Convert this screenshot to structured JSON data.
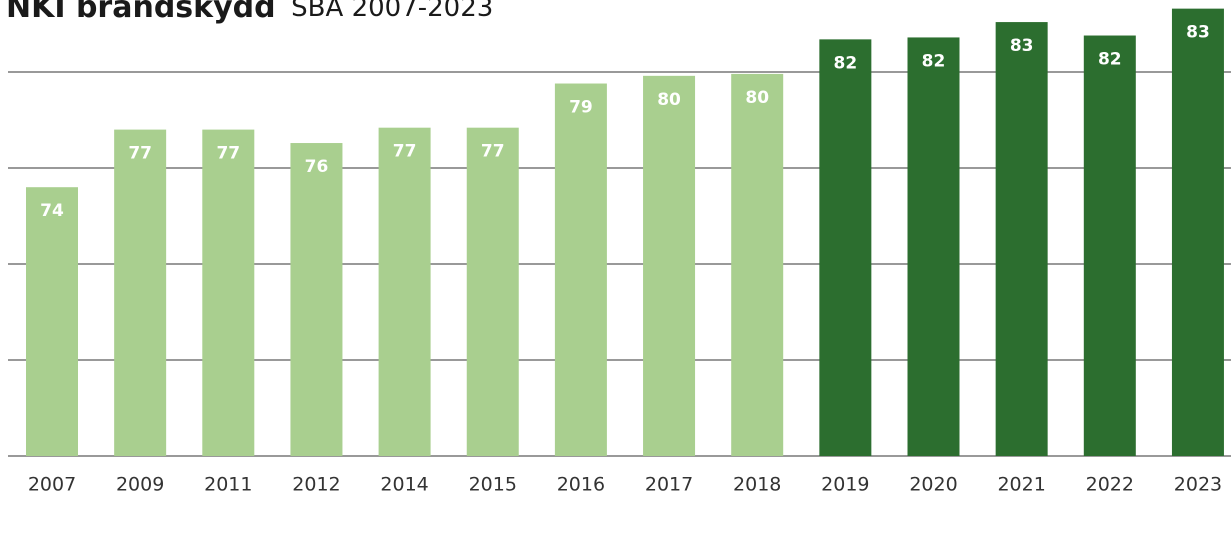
{
  "chart_data": {
    "type": "bar",
    "title": "NKI brandskydd",
    "subtitle": "SBA 2007-2023",
    "categories": [
      "2007",
      "2009",
      "2011",
      "2012",
      "2014",
      "2015",
      "2016",
      "2017",
      "2018",
      "2019",
      "2020",
      "2021",
      "2022",
      "2023"
    ],
    "values": [
      74.0,
      77.0,
      77.0,
      76.3,
      77.1,
      77.1,
      79.4,
      79.8,
      79.9,
      81.7,
      81.8,
      82.6,
      81.9,
      83.3
    ],
    "value_labels": [
      "74",
      "77",
      "77",
      "76",
      "77",
      "77",
      "79",
      "80",
      "80",
      "82",
      "82",
      "83",
      "82",
      "83"
    ],
    "colors": [
      "#a9cf8f",
      "#a9cf8f",
      "#a9cf8f",
      "#a9cf8f",
      "#a9cf8f",
      "#a9cf8f",
      "#a9cf8f",
      "#a9cf8f",
      "#a9cf8f",
      "#2c6e2f",
      "#2c6e2f",
      "#2c6e2f",
      "#2c6e2f",
      "#2c6e2f"
    ],
    "ylim": [
      60,
      83.75
    ],
    "yticks": [
      60,
      65,
      70,
      75,
      80
    ],
    "grid": true
  }
}
